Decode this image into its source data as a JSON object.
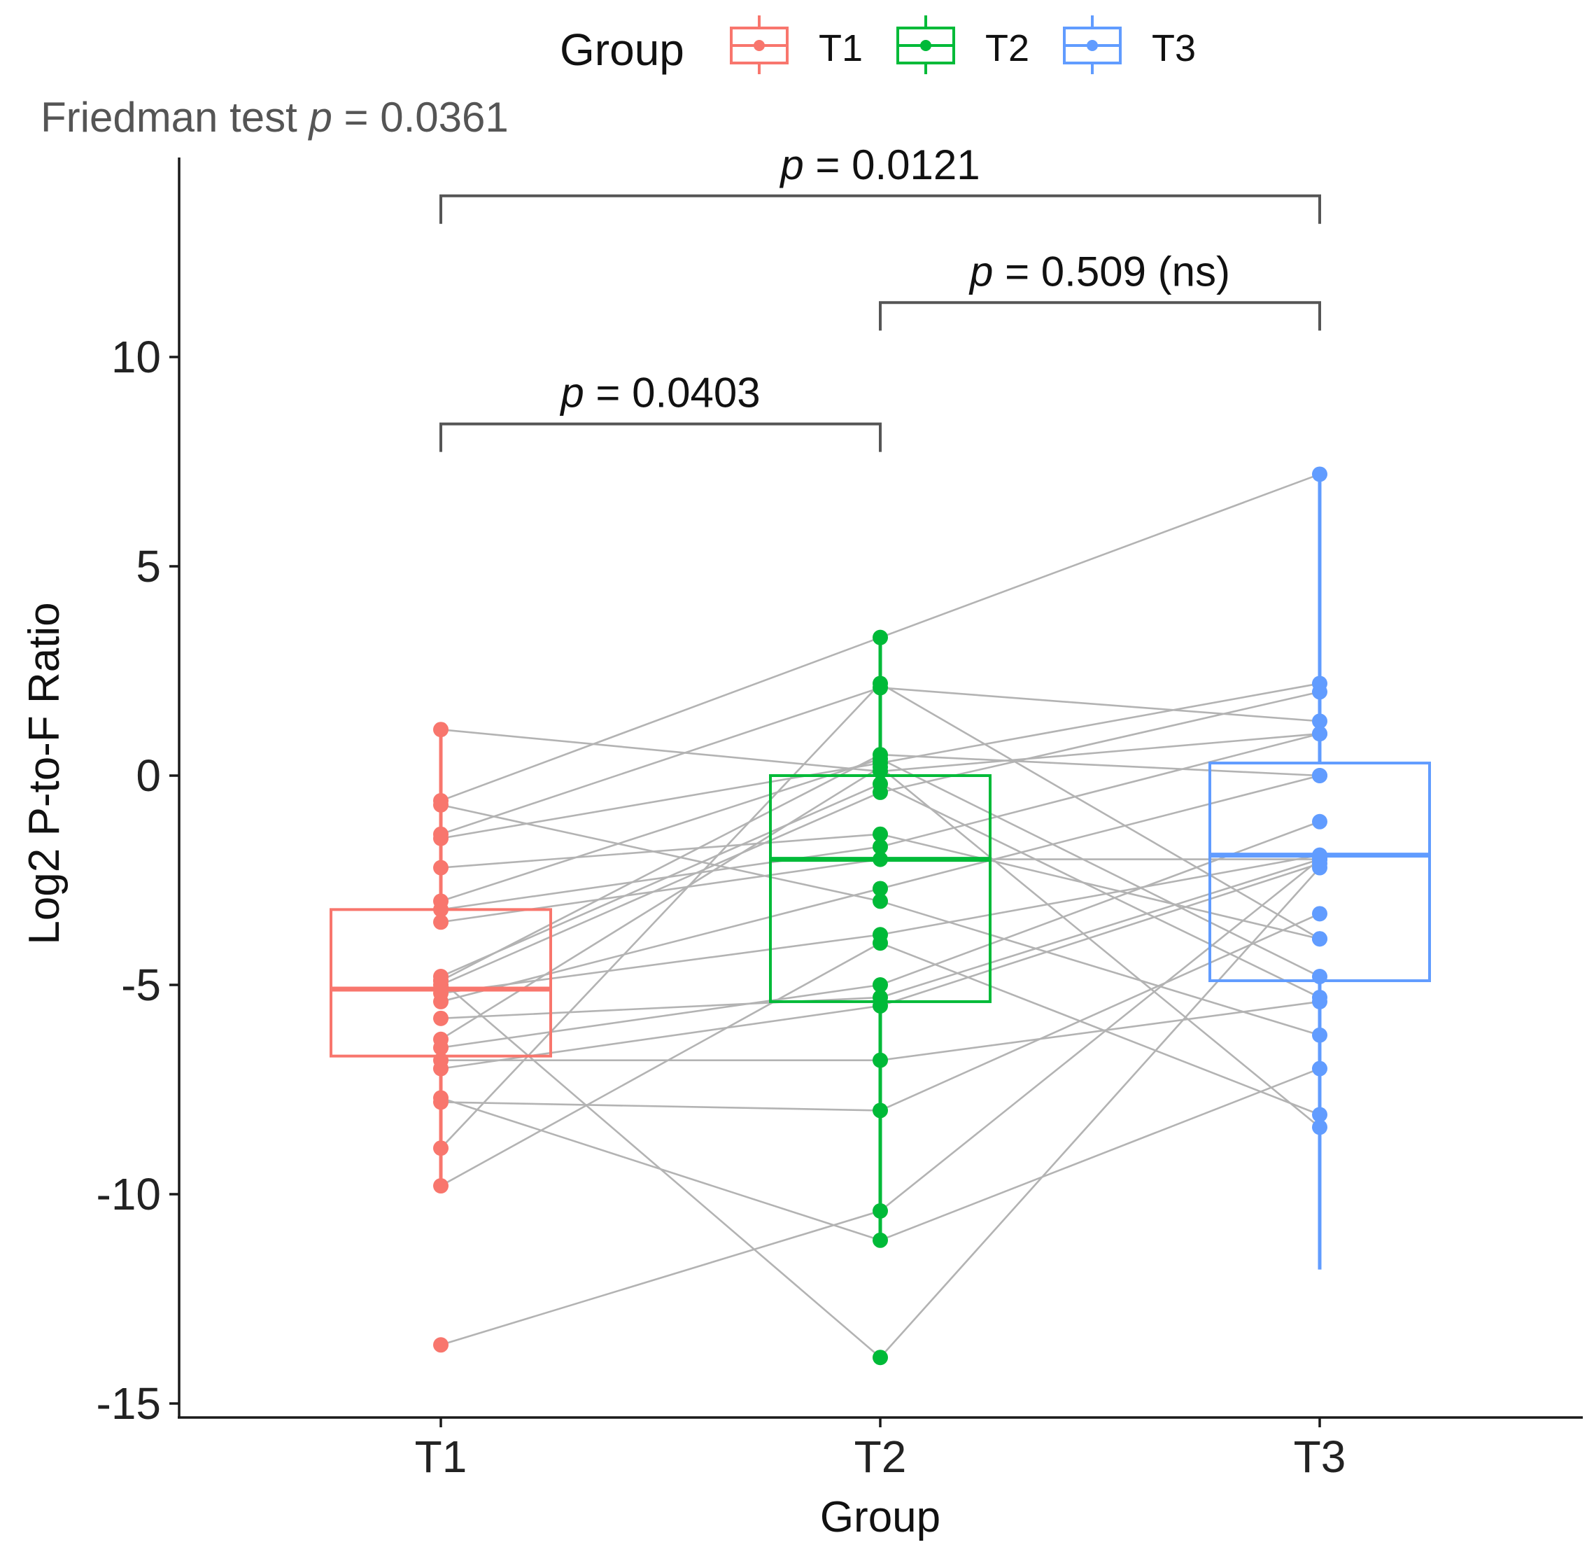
{
  "chart_data": {
    "type": "box",
    "subtitle": {
      "prefix": "Friedman test ",
      "p_symbol": "p",
      "suffix": " = 0.0361"
    },
    "xlabel": "Group",
    "ylabel": "Log2 P-to-F Ratio",
    "ylim": [
      -15,
      14
    ],
    "yticks": [
      -15,
      -10,
      -5,
      0,
      5,
      10
    ],
    "ytick_labels": [
      "-15",
      "-10",
      "-5",
      "0",
      "5",
      "10"
    ],
    "categories": [
      "T1",
      "T2",
      "T3"
    ],
    "legend": {
      "title": "Group",
      "position": "top",
      "entries": [
        {
          "label": "T1",
          "color": "#F8766D"
        },
        {
          "label": "T2",
          "color": "#00BA38"
        },
        {
          "label": "T3",
          "color": "#619CFF"
        }
      ]
    },
    "boxes": [
      {
        "group": "T1",
        "color": "#F8766D",
        "q1": -6.7,
        "median": -5.1,
        "q3": -3.2,
        "whisker_low": -9.8,
        "whisker_high": 1.1
      },
      {
        "group": "T2",
        "color": "#00BA38",
        "q1": -5.4,
        "median": -2.0,
        "q3": 0.0,
        "whisker_low": -11.1,
        "whisker_high": 3.3
      },
      {
        "group": "T3",
        "color": "#619CFF",
        "q1": -4.9,
        "median": -1.9,
        "q3": 0.3,
        "whisker_low": -11.8,
        "whisker_high": 7.2
      }
    ],
    "paired_subjects": [
      [
        1.1,
        0.1,
        1.0
      ],
      [
        -0.6,
        3.3,
        7.2
      ],
      [
        -0.7,
        -3.0,
        -6.2
      ],
      [
        -1.4,
        2.1,
        1.3
      ],
      [
        -1.5,
        0.3,
        2.2
      ],
      [
        -2.2,
        -1.4,
        -3.9
      ],
      [
        -3.0,
        0.4,
        -4.8
      ],
      [
        -3.2,
        -1.7,
        1.0
      ],
      [
        -3.5,
        -2.0,
        -2.0
      ],
      [
        -4.8,
        -0.2,
        -5.3
      ],
      [
        -4.9,
        0.5,
        0.0
      ],
      [
        -5.0,
        -0.4,
        2.0
      ],
      [
        -5.2,
        -3.8,
        -1.9
      ],
      [
        -5.4,
        -2.7,
        0.0
      ],
      [
        -5.8,
        -5.3,
        -2.0
      ],
      [
        -6.3,
        0.2,
        -8.4
      ],
      [
        -6.5,
        -5.0,
        -1.1
      ],
      [
        -6.8,
        -6.8,
        -5.4
      ],
      [
        -7.0,
        -5.5,
        -2.1
      ],
      [
        -7.7,
        -11.1,
        -7.0
      ],
      [
        -7.8,
        -8.0,
        -3.3
      ],
      [
        -8.9,
        2.2,
        -3.9
      ],
      [
        -9.8,
        -4.0,
        -8.1
      ],
      [
        -13.6,
        -10.4,
        -2.0
      ],
      [
        -4.9,
        -13.9,
        -2.2
      ]
    ],
    "comparisons": [
      {
        "from": "T1",
        "to": "T2",
        "y": 8.4,
        "p_symbol": "p",
        "text": " = 0.0403"
      },
      {
        "from": "T2",
        "to": "T3",
        "y": 11.3,
        "p_symbol": "p",
        "text": " = 0.509 (ns)"
      },
      {
        "from": "T1",
        "to": "T3",
        "y": 13.85,
        "p_symbol": "p",
        "text": " = 0.0121"
      }
    ]
  }
}
